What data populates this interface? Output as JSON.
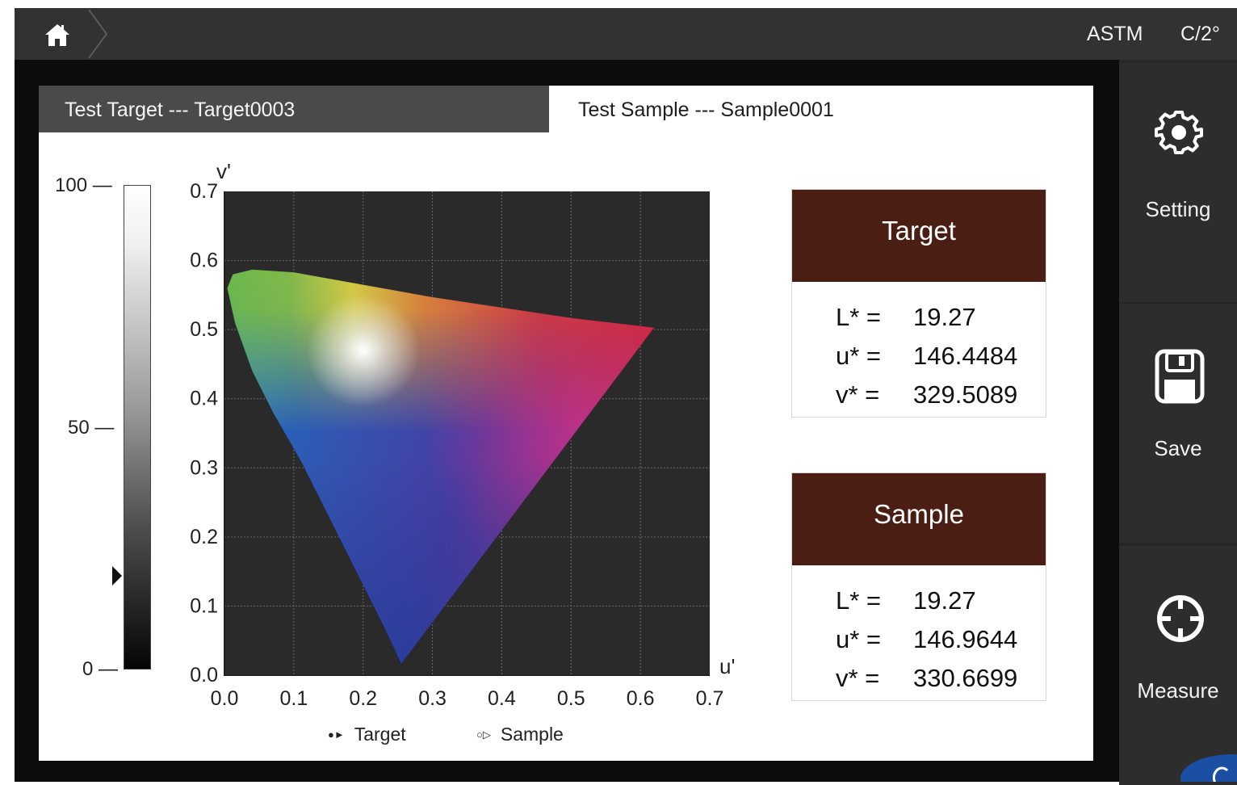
{
  "topbar": {
    "home_icon": "home-icon",
    "standard": "ASTM",
    "illuminant": "C/2°"
  },
  "tabs": [
    {
      "label": "Test Target --- Target0003",
      "active": false
    },
    {
      "label": "Test Sample --- Sample0001",
      "active": true
    }
  ],
  "sidebar": {
    "setting": {
      "label": "Setting",
      "icon": "gear-icon"
    },
    "save": {
      "label": "Save",
      "icon": "floppy-disk-icon"
    },
    "measure": {
      "label": "Measure",
      "icon": "crosshair-icon"
    }
  },
  "lightness_scale": {
    "ticks": [
      "100",
      "50",
      "0"
    ],
    "marker_value": 19.27,
    "marker_icon": "triangle-right-icon"
  },
  "chart_data": {
    "type": "scatter",
    "xlabel": "u'",
    "ylabel": "v'",
    "xlim": [
      0.0,
      0.7
    ],
    "ylim": [
      0.0,
      0.7
    ],
    "xticks": [
      "0.0",
      "0.1",
      "0.2",
      "0.3",
      "0.4",
      "0.5",
      "0.6",
      "0.7"
    ],
    "yticks": [
      "0.0",
      "0.1",
      "0.2",
      "0.3",
      "0.4",
      "0.5",
      "0.6",
      "0.7"
    ],
    "grid": true,
    "background": "#2a2a2a",
    "legend": [
      {
        "name": "Target",
        "marker": "filled",
        "symbols": "●►"
      },
      {
        "name": "Sample",
        "marker": "hollow",
        "symbols": "○▷"
      }
    ],
    "gamut_boundary": [
      [
        0.255,
        0.016
      ],
      [
        0.23,
        0.07
      ],
      [
        0.19,
        0.15
      ],
      [
        0.15,
        0.23
      ],
      [
        0.11,
        0.31
      ],
      [
        0.07,
        0.38
      ],
      [
        0.04,
        0.44
      ],
      [
        0.015,
        0.51
      ],
      [
        0.004,
        0.56
      ],
      [
        0.012,
        0.58
      ],
      [
        0.04,
        0.587
      ],
      [
        0.1,
        0.583
      ],
      [
        0.2,
        0.565
      ],
      [
        0.3,
        0.547
      ],
      [
        0.4,
        0.532
      ],
      [
        0.5,
        0.517
      ],
      [
        0.62,
        0.503
      ]
    ],
    "white_point": [
      0.2,
      0.47
    ]
  },
  "cards": {
    "target": {
      "title": "Target",
      "rows": [
        {
          "label": "L* =",
          "value": "19.27"
        },
        {
          "label": "u* =",
          "value": "146.4484"
        },
        {
          "label": "v* =",
          "value": "329.5089"
        }
      ]
    },
    "sample": {
      "title": "Sample",
      "rows": [
        {
          "label": "L* =",
          "value": "19.27"
        },
        {
          "label": "u* =",
          "value": "146.9644"
        },
        {
          "label": "v* =",
          "value": "330.6699"
        }
      ]
    }
  },
  "colors": {
    "card_header": "#4b1e14",
    "topbar": "#323232",
    "sidebar": "#2d2d2d"
  }
}
